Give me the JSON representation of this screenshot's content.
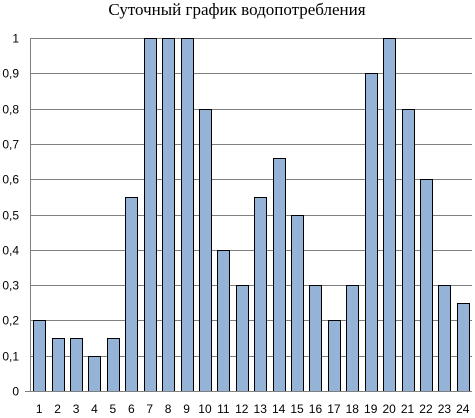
{
  "chart_data": {
    "type": "bar",
    "title": "Суточный график водопотребления",
    "xlabel": "",
    "ylabel": "",
    "categories": [
      "1",
      "2",
      "3",
      "4",
      "5",
      "6",
      "7",
      "8",
      "9",
      "10",
      "11",
      "12",
      "13",
      "14",
      "15",
      "16",
      "17",
      "18",
      "19",
      "20",
      "21",
      "22",
      "23",
      "24"
    ],
    "values": [
      0.2,
      0.15,
      0.15,
      0.1,
      0.15,
      0.55,
      1,
      1,
      1,
      0.8,
      0.4,
      0.3,
      0.55,
      0.66,
      0.5,
      0.3,
      0.2,
      0.3,
      0.9,
      1,
      0.8,
      0.6,
      0.3,
      0.25
    ],
    "ylim": [
      0,
      1
    ],
    "yticks": [
      "0",
      "0,1",
      "0,2",
      "0,3",
      "0,4",
      "0,5",
      "0,6",
      "0,7",
      "0,8",
      "0,9",
      "1"
    ],
    "grid": true,
    "legend": "none",
    "colors": {
      "bar_fill": "#95b3d7",
      "bar_stroke": "#000000",
      "grid": "#808080"
    }
  }
}
